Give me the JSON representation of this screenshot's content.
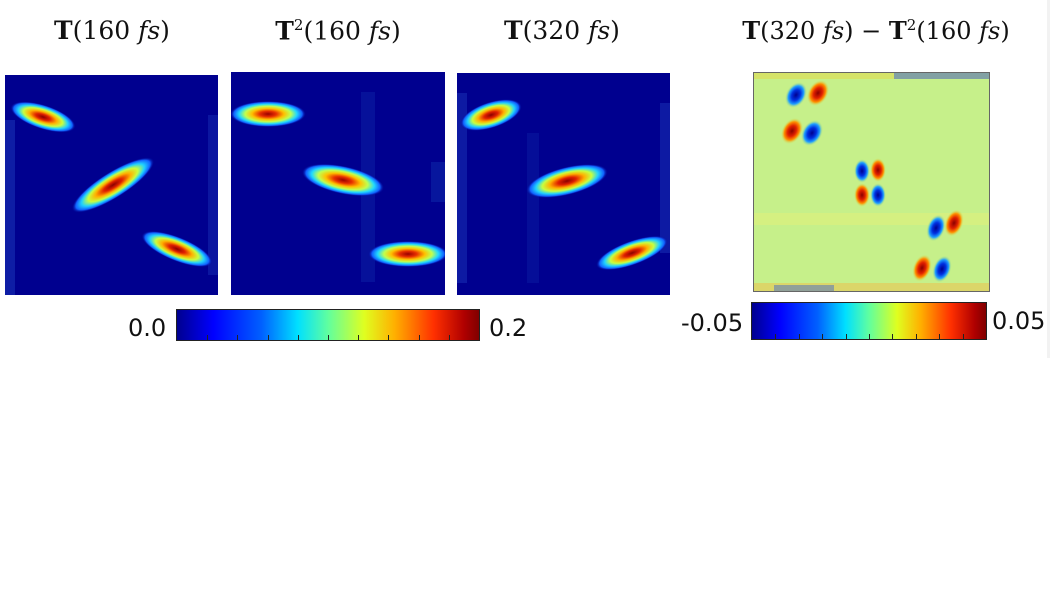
{
  "panels": [
    {
      "id": "t160",
      "title_bold": "T",
      "title_sup": "",
      "title_open": "(160 ",
      "title_it": "fs",
      "title_close": ")"
    },
    {
      "id": "t2_160",
      "title_bold": "T",
      "title_sup": "2",
      "title_open": "(160 ",
      "title_it": "fs",
      "title_close": ")"
    },
    {
      "id": "t320",
      "title_bold": "T",
      "title_sup": "",
      "title_open": "(320 ",
      "title_it": "fs",
      "title_close": ")"
    },
    {
      "id": "diff",
      "title_bold": "T",
      "title_sup": "",
      "title_open": "(320 ",
      "title_it": "fs",
      "title_close": ") − ",
      "title_bold2": "T",
      "title_sup2": "2",
      "title_open2": "(160 ",
      "title_it2": "fs",
      "title_close2": ")"
    }
  ],
  "colorbars": {
    "abs": {
      "min_label": "0.0",
      "max_label": "0.2",
      "colormap": "jet"
    },
    "diff": {
      "min_label": "-0.05",
      "max_label": "0.05",
      "colormap": "jet"
    }
  },
  "chart_data": [
    {
      "type": "heatmap",
      "title": "T(160 fs)",
      "colormap": "jet",
      "value_range": [
        0.0,
        0.2
      ],
      "background_value": 0.0,
      "features": [
        {
          "shape": "elongated ridge",
          "location": "top-left",
          "peak_value": 0.2
        },
        {
          "shape": "elongated ridge",
          "location": "center",
          "peak_value": 0.2
        },
        {
          "shape": "elongated ridge",
          "location": "bottom-right",
          "peak_value": 0.2
        }
      ]
    },
    {
      "type": "heatmap",
      "title": "T²(160 fs)",
      "colormap": "jet",
      "value_range": [
        0.0,
        0.2
      ],
      "background_value": 0.0,
      "features": [
        {
          "shape": "horizontal ridge",
          "location": "top-left",
          "peak_value": 0.2
        },
        {
          "shape": "horizontal ridge",
          "location": "center",
          "peak_value": 0.2
        },
        {
          "shape": "horizontal ridge",
          "location": "bottom-right",
          "peak_value": 0.2
        }
      ]
    },
    {
      "type": "heatmap",
      "title": "T(320 fs)",
      "colormap": "jet",
      "value_range": [
        0.0,
        0.2
      ],
      "background_value": 0.0,
      "features": [
        {
          "shape": "elongated ridge",
          "location": "top-left",
          "peak_value": 0.2
        },
        {
          "shape": "elongated ridge",
          "location": "center",
          "peak_value": 0.2
        },
        {
          "shape": "elongated ridge",
          "location": "bottom-right",
          "peak_value": 0.2
        }
      ]
    },
    {
      "type": "heatmap",
      "title": "T(320 fs) − T²(160 fs)",
      "colormap": "jet",
      "value_range": [
        -0.05,
        0.05
      ],
      "background_value": 0.0,
      "features": [
        {
          "shape": "quadrupole",
          "location": "top-left",
          "extremes": [
            -0.05,
            0.05
          ]
        },
        {
          "shape": "quadrupole",
          "location": "center",
          "extremes": [
            -0.05,
            0.05
          ]
        },
        {
          "shape": "quadrupole",
          "location": "bottom-right",
          "extremes": [
            -0.05,
            0.05
          ]
        }
      ]
    }
  ]
}
